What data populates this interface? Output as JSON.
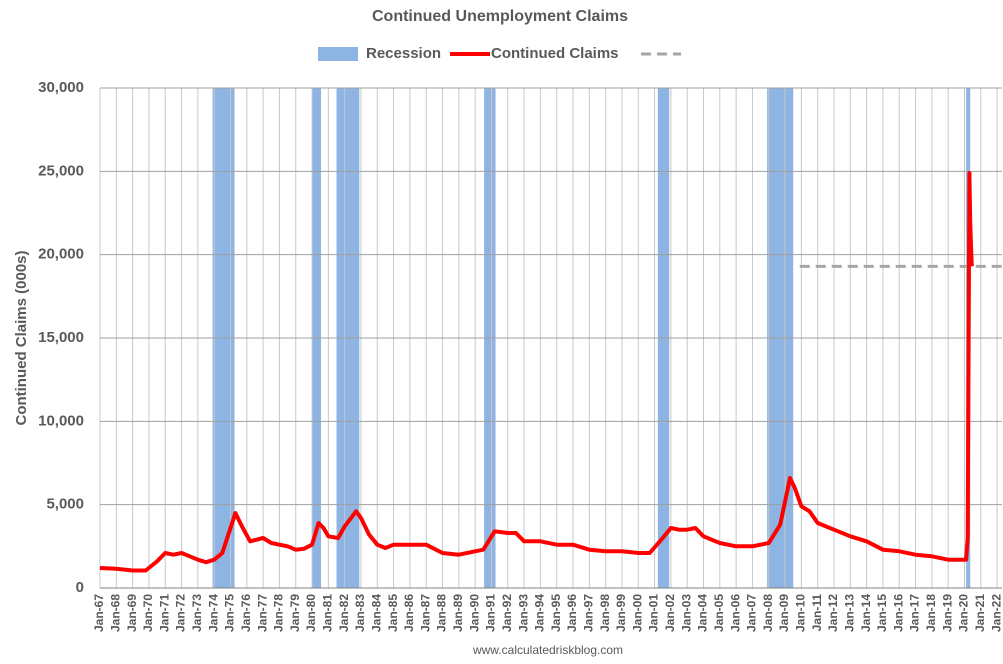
{
  "chart_data": {
    "type": "line",
    "title": "Continued Unemployment Claims",
    "y_label": "Continued Claims (000s)",
    "source": "www.calculatedriskblog.com",
    "recessions": {
      "name": "Recession",
      "color": "#8eb4e3",
      "ranges": [
        [
          1973.9,
          1975.25
        ],
        [
          1980.0,
          1980.55
        ],
        [
          1981.5,
          1982.9
        ],
        [
          1990.55,
          1991.25
        ],
        [
          2001.2,
          2001.9
        ],
        [
          2007.9,
          2009.5
        ],
        [
          2020.1,
          2020.35
        ]
      ]
    },
    "x": [
      1967.0,
      1968.0,
      1969.0,
      1969.8,
      1970.5,
      1971.0,
      1971.5,
      1972.0,
      1972.5,
      1973.0,
      1973.5,
      1974.0,
      1974.5,
      1975.0,
      1975.3,
      1975.7,
      1976.2,
      1977.0,
      1977.5,
      1978.5,
      1979.0,
      1979.5,
      1980.0,
      1980.4,
      1980.7,
      1981.0,
      1981.6,
      1982.0,
      1982.7,
      1983.0,
      1983.5,
      1984.0,
      1984.5,
      1985.0,
      1986.0,
      1987.0,
      1988.0,
      1989.0,
      1990.0,
      1990.5,
      1991.2,
      1992.0,
      1992.5,
      1993.0,
      1994.0,
      1995.0,
      1996.0,
      1997.0,
      1998.0,
      1999.0,
      2000.0,
      2000.7,
      2001.5,
      2002.0,
      2002.5,
      2003.0,
      2003.5,
      2004.0,
      2005.0,
      2006.0,
      2007.0,
      2008.0,
      2008.7,
      2009.3,
      2009.6,
      2010.0,
      2010.5,
      2011.0,
      2012.0,
      2013.0,
      2014.0,
      2015.0,
      2016.0,
      2017.0,
      2018.0,
      2019.0,
      2020.1,
      2020.2,
      2020.3,
      2020.35,
      2020.4,
      2020.45
    ],
    "series": [
      {
        "name": "Continued Claims",
        "color": "#ff0000",
        "values": [
          1200,
          1150,
          1050,
          1050,
          1600,
          2100,
          2000,
          2100,
          1900,
          1700,
          1550,
          1700,
          2100,
          3600,
          4500,
          3700,
          2800,
          3000,
          2700,
          2500,
          2300,
          2350,
          2600,
          3900,
          3600,
          3100,
          3000,
          3700,
          4600,
          4200,
          3200,
          2600,
          2400,
          2600,
          2600,
          2600,
          2100,
          2000,
          2200,
          2300,
          3400,
          3300,
          3300,
          2800,
          2800,
          2600,
          2600,
          2300,
          2200,
          2200,
          2100,
          2100,
          3000,
          3600,
          3500,
          3500,
          3600,
          3100,
          2700,
          2500,
          2500,
          2700,
          3800,
          6600,
          6000,
          4900,
          4600,
          3900,
          3500,
          3100,
          2800,
          2300,
          2200,
          2000,
          1900,
          1700,
          1700,
          3000,
          24900,
          22000,
          20500,
          19300
        ]
      }
    ],
    "reference": {
      "color": "#a6a6a6",
      "value": 19300,
      "x": [
        2009.9,
        2022.3
      ]
    },
    "xlim": [
      1967,
      2022.3
    ],
    "ylim": [
      0,
      30000
    ],
    "yticks": [
      0,
      {
        "value": 5000,
        "label": "5,000"
      },
      {
        "value": 10000,
        "label": "10,000"
      },
      {
        "value": 15000,
        "label": "15,000"
      },
      {
        "value": 20000,
        "label": "20,000"
      },
      {
        "value": 25000,
        "label": "25,000"
      },
      {
        "value": 30000,
        "label": "30,000"
      }
    ],
    "xticks": [
      {
        "value": 1967,
        "label": "Jan-67"
      },
      {
        "value": 1968,
        "label": "Jan-68"
      },
      {
        "value": 1969,
        "label": "Jan-69"
      },
      {
        "value": 1970,
        "label": "Jan-70"
      },
      {
        "value": 1971,
        "label": "Jan-71"
      },
      {
        "value": 1972,
        "label": "Jan-72"
      },
      {
        "value": 1973,
        "label": "Jan-73"
      },
      {
        "value": 1974,
        "label": "Jan-74"
      },
      {
        "value": 1975,
        "label": "Jan-75"
      },
      {
        "value": 1976,
        "label": "Jan-76"
      },
      {
        "value": 1977,
        "label": "Jan-77"
      },
      {
        "value": 1978,
        "label": "Jan-78"
      },
      {
        "value": 1979,
        "label": "Jan-79"
      },
      {
        "value": 1980,
        "label": "Jan-80"
      },
      {
        "value": 1981,
        "label": "Jan-81"
      },
      {
        "value": 1982,
        "label": "Jan-82"
      },
      {
        "value": 1983,
        "label": "Jan-83"
      },
      {
        "value": 1984,
        "label": "Jan-84"
      },
      {
        "value": 1985,
        "label": "Jan-85"
      },
      {
        "value": 1986,
        "label": "Jan-86"
      },
      {
        "value": 1987,
        "label": "Jan-87"
      },
      {
        "value": 1988,
        "label": "Jan-88"
      },
      {
        "value": 1989,
        "label": "Jan-89"
      },
      {
        "value": 1990,
        "label": "Jan-90"
      },
      {
        "value": 1991,
        "label": "Jan-91"
      },
      {
        "value": 1992,
        "label": "Jan-92"
      },
      {
        "value": 1993,
        "label": "Jan-93"
      },
      {
        "value": 1994,
        "label": "Jan-94"
      },
      {
        "value": 1995,
        "label": "Jan-95"
      },
      {
        "value": 1996,
        "label": "Jan-96"
      },
      {
        "value": 1997,
        "label": "Jan-97"
      },
      {
        "value": 1998,
        "label": "Jan-98"
      },
      {
        "value": 1999,
        "label": "Jan-99"
      },
      {
        "value": 2000,
        "label": "Jan-00"
      },
      {
        "value": 2001,
        "label": "Jan-01"
      },
      {
        "value": 2002,
        "label": "Jan-02"
      },
      {
        "value": 2003,
        "label": "Jan-03"
      },
      {
        "value": 2004,
        "label": "Jan-04"
      },
      {
        "value": 2005,
        "label": "Jan-05"
      },
      {
        "value": 2006,
        "label": "Jan-06"
      },
      {
        "value": 2007,
        "label": "Jan-07"
      },
      {
        "value": 2008,
        "label": "Jan-08"
      },
      {
        "value": 2009,
        "label": "Jan-09"
      },
      {
        "value": 2010,
        "label": "Jan-10"
      },
      {
        "value": 2011,
        "label": "Jan-11"
      },
      {
        "value": 2012,
        "label": "Jan-12"
      },
      {
        "value": 2013,
        "label": "Jan-13"
      },
      {
        "value": 2014,
        "label": "Jan-14"
      },
      {
        "value": 2015,
        "label": "Jan-15"
      },
      {
        "value": 2016,
        "label": "Jan-16"
      },
      {
        "value": 2017,
        "label": "Jan-17"
      },
      {
        "value": 2018,
        "label": "Jan-18"
      },
      {
        "value": 2019,
        "label": "Jan-19"
      },
      {
        "value": 2020,
        "label": "Jan-20"
      },
      {
        "value": 2021,
        "label": "Jan-21"
      },
      {
        "value": 2022,
        "label": "Jan-22"
      }
    ],
    "grid": true
  }
}
